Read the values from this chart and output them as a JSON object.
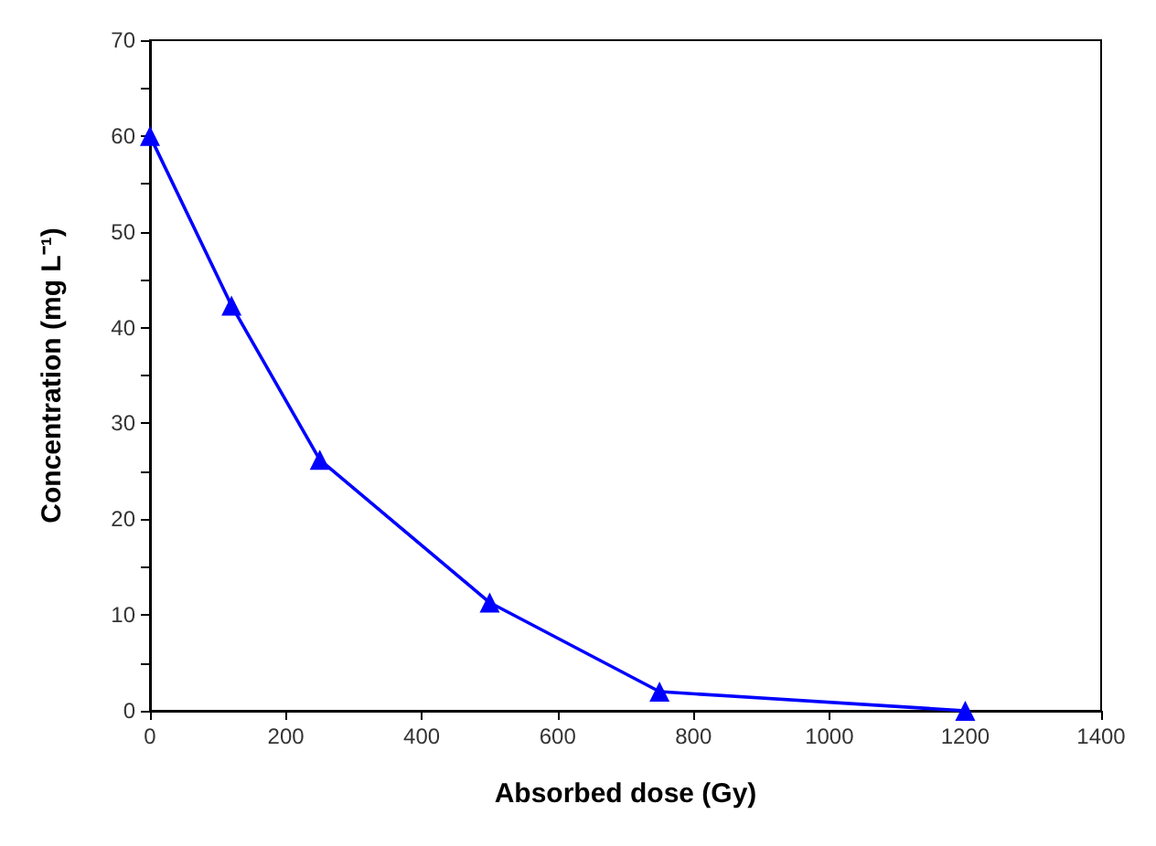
{
  "chart_data": {
    "type": "line",
    "xlabel": "Absorbed dose (Gy)",
    "ylabel": "Concentration (mg L⁻¹)",
    "x": [
      0,
      120,
      250,
      500,
      750,
      1200
    ],
    "series": [
      {
        "color": "#0000ff",
        "values": [
          60,
          42.3,
          26.2,
          11.3,
          2,
          0
        ]
      }
    ],
    "xlim": [
      0,
      1400
    ],
    "xticks": [
      0,
      200,
      400,
      600,
      800,
      1000,
      1200,
      1400
    ],
    "ylim": [
      0,
      70
    ],
    "yticks": [
      0,
      {
        "value": 5,
        "label": null
      },
      10,
      {
        "value": 15,
        "label": null
      },
      20,
      {
        "value": 25,
        "label": null
      },
      30,
      {
        "value": 35,
        "label": null
      },
      40,
      {
        "value": 45,
        "label": null
      },
      50,
      {
        "value": 55,
        "label": null
      },
      60,
      {
        "value": 65,
        "label": null
      },
      70
    ],
    "grid": false,
    "marker": "triangle",
    "line_style": "solid"
  }
}
